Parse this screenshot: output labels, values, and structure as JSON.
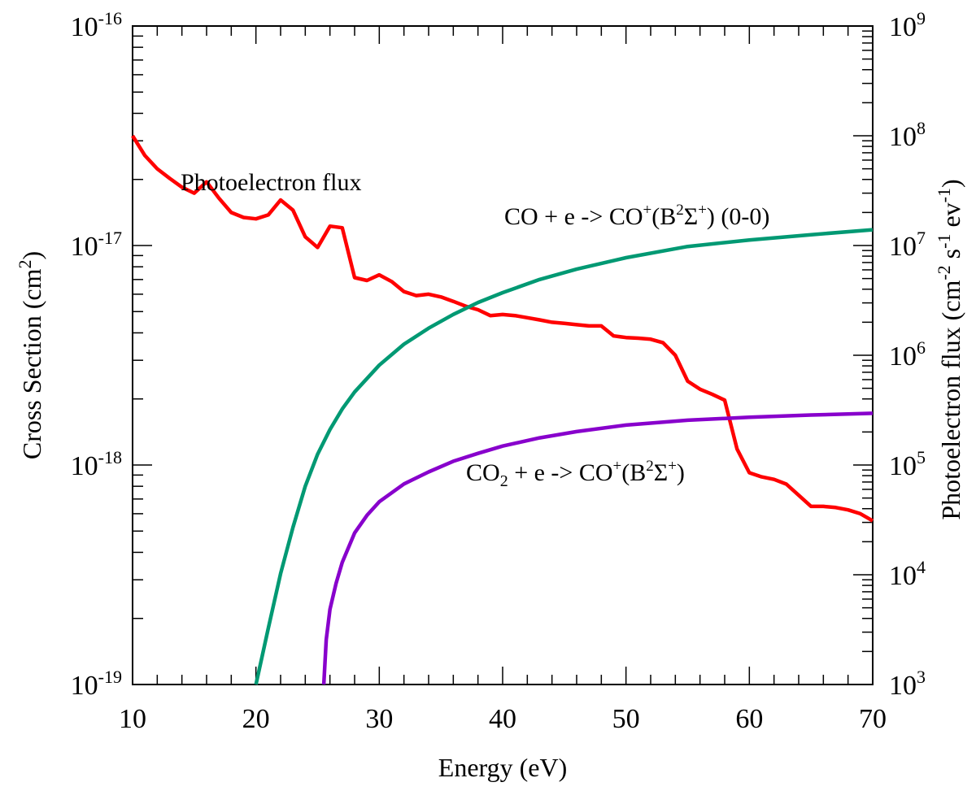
{
  "chart_data": {
    "type": "line",
    "xlabel": "Energy (eV)",
    "xlim": [
      10,
      70
    ],
    "x_ticks": [
      10,
      20,
      30,
      40,
      50,
      60,
      70
    ],
    "y_left": {
      "label_main": "Cross Section (cm",
      "label_sup": "2",
      "label_close": ")",
      "scale": "log",
      "range_exp": [
        -19,
        -16
      ],
      "ticks": [
        {
          "exp": -19,
          "base": "10",
          "sup": "-19"
        },
        {
          "exp": -18,
          "base": "10",
          "sup": "-18"
        },
        {
          "exp": -17,
          "base": "10",
          "sup": "-17"
        },
        {
          "exp": -16,
          "base": "10",
          "sup": "-16"
        }
      ]
    },
    "y_right": {
      "label_main": "Photoelectron flux (cm",
      "label_sup1": "-2",
      "label_mid": " s",
      "label_sup2": "-1",
      "label_mid2": " ev",
      "label_sup3": "-1",
      "label_close": ")",
      "scale": "log",
      "range_exp": [
        3,
        9
      ],
      "ticks": [
        {
          "exp": 3,
          "base": "10",
          "sup": "3"
        },
        {
          "exp": 4,
          "base": "10",
          "sup": "4"
        },
        {
          "exp": 5,
          "base": "10",
          "sup": "5"
        },
        {
          "exp": 6,
          "base": "10",
          "sup": "6"
        },
        {
          "exp": 7,
          "base": "10",
          "sup": "7"
        },
        {
          "exp": 8,
          "base": "10",
          "sup": "8"
        },
        {
          "exp": 9,
          "base": "10",
          "sup": "9"
        }
      ]
    },
    "series": [
      {
        "name": "Photoelectron flux",
        "axis": "right",
        "color": "#ff0000",
        "x": [
          10,
          11,
          12,
          13,
          14,
          15,
          16,
          17,
          18,
          19,
          20,
          21,
          22,
          23,
          24,
          25,
          26,
          27,
          28,
          29,
          30,
          31,
          32,
          33,
          34,
          35,
          36,
          37,
          38,
          39,
          40,
          41,
          42,
          43,
          44,
          45,
          46,
          47,
          48,
          49,
          50,
          51,
          52,
          53,
          54,
          55,
          56,
          57,
          58,
          59,
          60,
          61,
          62,
          63,
          64,
          65,
          66,
          67,
          68,
          69,
          70
        ],
        "y": [
          100000000.0,
          66000000.0,
          50000000.0,
          41000000.0,
          34000000.0,
          30000000.0,
          38000000.0,
          27000000.0,
          20000000.0,
          18000000.0,
          17500000.0,
          19000000.0,
          26000000.0,
          21000000.0,
          12000000.0,
          9600000.0,
          15000000.0,
          14500000.0,
          5100000.0,
          4800000.0,
          5400000.0,
          4700000.0,
          3800000.0,
          3500000.0,
          3600000.0,
          3400000.0,
          3100000.0,
          2800000.0,
          2600000.0,
          2300000.0,
          2350000.0,
          2300000.0,
          2200000.0,
          2100000.0,
          2000000.0,
          1950000.0,
          1900000.0,
          1850000.0,
          1850000.0,
          1500000.0,
          1450000.0,
          1430000.0,
          1400000.0,
          1300000.0,
          1000000.0,
          580000.0,
          490000.0,
          440000.0,
          390000.0,
          140000.0,
          85000.0,
          78000.0,
          74000.0,
          67000.0,
          53000.0,
          42000.0,
          42000.0,
          41000.0,
          39000.0,
          36000.0,
          31000.0
        ]
      },
      {
        "name": "CO + e -> CO+(B2Σ+) (0-0)",
        "axis": "left",
        "color": "#009973",
        "x": [
          20,
          21,
          22,
          23,
          24,
          25,
          26,
          27,
          28,
          30,
          32,
          34,
          36,
          38,
          40,
          43,
          46,
          50,
          55,
          60,
          65,
          70
        ],
        "y": [
          1e-19,
          1.8e-19,
          3.2e-19,
          5.2e-19,
          8e-19,
          1.12e-18,
          1.45e-18,
          1.8e-18,
          2.15e-18,
          2.85e-18,
          3.55e-18,
          4.2e-18,
          4.85e-18,
          5.5e-18,
          6.1e-18,
          7e-18,
          7.8e-18,
          8.8e-18,
          9.9e-18,
          1.06e-17,
          1.12e-17,
          1.18e-17
        ]
      },
      {
        "name": "CO2 + e -> CO+(B2Σ+)",
        "axis": "left",
        "color": "#8800cc",
        "x": [
          25.5,
          25.7,
          26,
          26.5,
          27,
          28,
          29,
          30,
          32,
          34,
          36,
          38,
          40,
          43,
          46,
          50,
          55,
          60,
          65,
          70
        ],
        "y": [
          1e-19,
          1.6e-19,
          2.2e-19,
          2.9e-19,
          3.6e-19,
          4.9e-19,
          5.9e-19,
          6.8e-19,
          8.2e-19,
          9.3e-19,
          1.04e-18,
          1.13e-18,
          1.22e-18,
          1.33e-18,
          1.42e-18,
          1.52e-18,
          1.6e-18,
          1.65e-18,
          1.69e-18,
          1.72e-18
        ]
      }
    ],
    "annotations": {
      "flux": {
        "text": "Photoelectron flux"
      },
      "co": {
        "pre": "CO + e ->  CO",
        "sup1": "+",
        "mid": "(B",
        "sup2": "2",
        "sym": "Σ",
        "sup3": "+",
        "post": ") (0-0)"
      },
      "co2": {
        "pre": "CO",
        "sub": "2",
        "mid": " + e -> CO",
        "sup1": "+",
        "mid2": "(B",
        "sup2": "2",
        "sym": "Σ",
        "sup3": "+",
        "post": ")"
      }
    }
  }
}
